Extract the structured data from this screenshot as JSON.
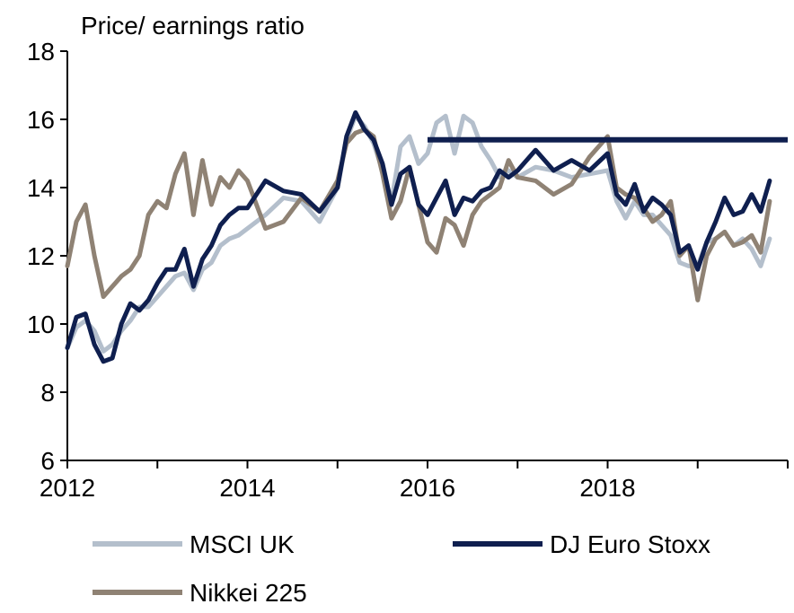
{
  "chart_data": {
    "type": "line",
    "ylabel": "Price/ earnings ratio",
    "xlabel": "",
    "ylim": [
      6,
      18
    ],
    "yticks": [
      "6",
      "8",
      "10",
      "12",
      "14",
      "16",
      "18"
    ],
    "xlim": [
      2012,
      2020
    ],
    "xticks": [
      "2012",
      "2014",
      "2016",
      "2018"
    ],
    "grid": false,
    "legend_position": "bottom",
    "series": [
      {
        "name": "MSCI UK",
        "color": "#b4bfcc",
        "x": [
          2012.0,
          2012.1,
          2012.2,
          2012.3,
          2012.4,
          2012.5,
          2012.6,
          2012.7,
          2012.8,
          2012.9,
          2013.0,
          2013.1,
          2013.2,
          2013.3,
          2013.4,
          2013.5,
          2013.6,
          2013.7,
          2013.8,
          2013.9,
          2014.0,
          2014.2,
          2014.4,
          2014.6,
          2014.8,
          2015.0,
          2015.1,
          2015.2,
          2015.3,
          2015.4,
          2015.5,
          2015.6,
          2015.7,
          2015.8,
          2015.9,
          2016.0,
          2016.1,
          2016.2,
          2016.3,
          2016.4,
          2016.5,
          2016.6,
          2016.7,
          2016.8,
          2016.9,
          2017.0,
          2017.2,
          2017.4,
          2017.6,
          2017.8,
          2018.0,
          2018.1,
          2018.2,
          2018.3,
          2018.4,
          2018.5,
          2018.6,
          2018.7,
          2018.8,
          2018.9,
          2019.0,
          2019.1,
          2019.2,
          2019.3,
          2019.4,
          2019.5,
          2019.6,
          2019.7,
          2019.8
        ],
        "values": [
          9.3,
          9.9,
          10.1,
          9.8,
          9.2,
          9.4,
          9.8,
          10.1,
          10.5,
          10.5,
          10.8,
          11.1,
          11.4,
          11.5,
          11.0,
          11.6,
          11.8,
          12.3,
          12.5,
          12.6,
          12.8,
          13.2,
          13.7,
          13.6,
          13.0,
          14.0,
          15.4,
          16.1,
          15.8,
          15.3,
          14.5,
          13.6,
          15.2,
          15.5,
          14.7,
          15.0,
          15.9,
          16.1,
          15.0,
          16.1,
          15.9,
          15.2,
          14.8,
          14.3,
          14.5,
          14.3,
          14.6,
          14.5,
          14.3,
          14.4,
          14.5,
          13.6,
          13.1,
          13.6,
          13.2,
          13.2,
          12.9,
          12.6,
          11.8,
          11.7,
          11.7,
          12.4,
          12.5,
          12.7,
          12.3,
          12.5,
          12.2,
          11.7,
          12.5
        ]
      },
      {
        "name": "DJ Euro Stoxx",
        "color": "#0f1f4f",
        "x": [
          2012.0,
          2012.1,
          2012.2,
          2012.3,
          2012.4,
          2012.5,
          2012.6,
          2012.7,
          2012.8,
          2012.9,
          2013.0,
          2013.1,
          2013.2,
          2013.3,
          2013.4,
          2013.5,
          2013.6,
          2013.7,
          2013.8,
          2013.9,
          2014.0,
          2014.2,
          2014.4,
          2014.6,
          2014.8,
          2015.0,
          2015.1,
          2015.2,
          2015.3,
          2015.4,
          2015.5,
          2015.6,
          2015.7,
          2015.8,
          2015.9,
          2016.0,
          2016.1,
          2016.2,
          2016.3,
          2016.4,
          2016.5,
          2016.6,
          2016.7,
          2016.8,
          2016.9,
          2017.0,
          2017.2,
          2017.4,
          2017.6,
          2017.8,
          2018.0,
          2018.1,
          2018.2,
          2018.3,
          2018.4,
          2018.5,
          2018.6,
          2018.7,
          2018.8,
          2018.9,
          2019.0,
          2019.1,
          2019.2,
          2019.3,
          2019.4,
          2019.5,
          2019.6,
          2019.7,
          2019.8
        ],
        "values": [
          9.3,
          10.2,
          10.3,
          9.4,
          8.9,
          9.0,
          10.0,
          10.6,
          10.4,
          10.7,
          11.2,
          11.6,
          11.6,
          12.2,
          11.1,
          11.9,
          12.3,
          12.9,
          13.2,
          13.4,
          13.4,
          14.2,
          13.9,
          13.8,
          13.3,
          14.0,
          15.5,
          16.2,
          15.7,
          15.4,
          14.7,
          13.5,
          14.4,
          14.6,
          13.5,
          13.2,
          13.7,
          14.2,
          13.2,
          13.7,
          13.6,
          13.9,
          14.0,
          14.5,
          14.3,
          14.5,
          15.1,
          14.5,
          14.8,
          14.5,
          15.0,
          13.8,
          13.5,
          14.1,
          13.3,
          13.7,
          13.5,
          13.2,
          12.1,
          12.3,
          11.6,
          12.4,
          13.0,
          13.7,
          13.2,
          13.3,
          13.8,
          13.3,
          14.2
        ]
      },
      {
        "name": "Nikkei 225",
        "color": "#8f8274",
        "x": [
          2012.0,
          2012.1,
          2012.2,
          2012.3,
          2012.4,
          2012.5,
          2012.6,
          2012.7,
          2012.8,
          2012.9,
          2013.0,
          2013.1,
          2013.2,
          2013.3,
          2013.4,
          2013.5,
          2013.6,
          2013.7,
          2013.8,
          2013.9,
          2014.0,
          2014.2,
          2014.4,
          2014.6,
          2014.8,
          2015.0,
          2015.1,
          2015.2,
          2015.3,
          2015.4,
          2015.5,
          2015.6,
          2015.7,
          2015.8,
          2015.9,
          2016.0,
          2016.1,
          2016.2,
          2016.3,
          2016.4,
          2016.5,
          2016.6,
          2016.7,
          2016.8,
          2016.9,
          2017.0,
          2017.2,
          2017.4,
          2017.6,
          2017.8,
          2018.0,
          2018.1,
          2018.2,
          2018.3,
          2018.4,
          2018.5,
          2018.6,
          2018.7,
          2018.8,
          2018.9,
          2019.0,
          2019.1,
          2019.2,
          2019.3,
          2019.4,
          2019.5,
          2019.6,
          2019.7,
          2019.8
        ],
        "values": [
          11.7,
          13.0,
          13.5,
          12.0,
          10.8,
          11.1,
          11.4,
          11.6,
          12.0,
          13.2,
          13.6,
          13.4,
          14.4,
          15.0,
          13.2,
          14.8,
          13.5,
          14.3,
          14.0,
          14.5,
          14.2,
          12.8,
          13.0,
          13.7,
          13.3,
          14.2,
          15.3,
          15.6,
          15.7,
          15.5,
          14.4,
          13.1,
          13.6,
          14.6,
          13.5,
          12.4,
          12.1,
          13.1,
          12.9,
          12.3,
          13.2,
          13.6,
          13.8,
          14.0,
          14.8,
          14.3,
          14.2,
          13.8,
          14.1,
          14.9,
          15.5,
          14.0,
          13.8,
          13.7,
          13.4,
          13.0,
          13.2,
          13.6,
          12.0,
          12.3,
          10.7,
          12.0,
          12.5,
          12.7,
          12.3,
          12.4,
          12.6,
          12.1,
          13.6
        ]
      }
    ],
    "annotations": [
      {
        "type": "hline",
        "y": 15.4,
        "x_start": 2016.0,
        "x_end": 2020.0,
        "color": "#0f1f4f"
      }
    ]
  }
}
